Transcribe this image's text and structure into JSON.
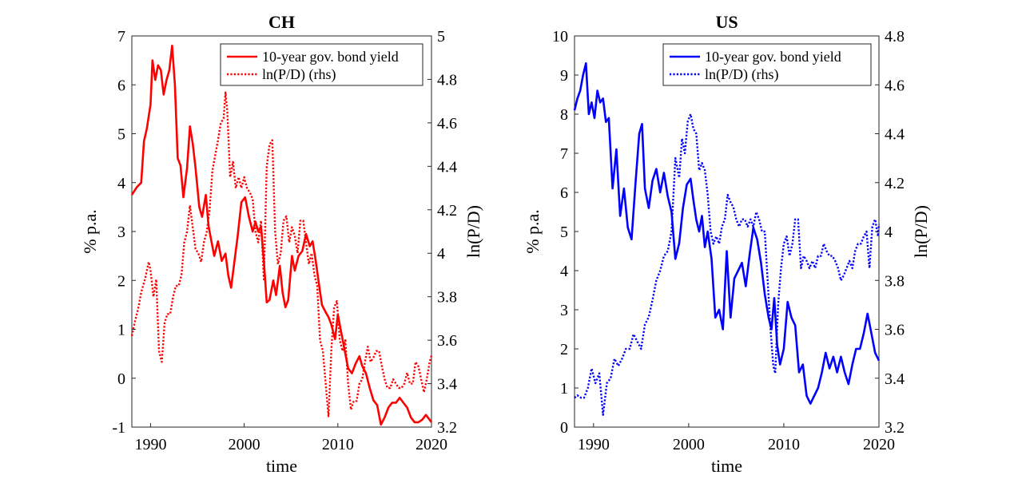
{
  "chart_data": [
    {
      "type": "line",
      "title": "CH",
      "xlabel": "time",
      "ylabel": "% p.a.",
      "y2label": "ln(P/D)",
      "xlim": [
        1988,
        2020
      ],
      "ylim": [
        -1,
        7
      ],
      "y2lim": [
        3.2,
        5
      ],
      "xticks": [
        "1990",
        "2000",
        "2010",
        "2020"
      ],
      "yticks": [
        "-1",
        "0",
        "1",
        "2",
        "3",
        "4",
        "5",
        "6",
        "7"
      ],
      "y2ticks": [
        "3.2",
        "3.4",
        "3.6",
        "3.8",
        "4",
        "4.2",
        "4.4",
        "4.6",
        "4.8",
        "5"
      ],
      "grid": false,
      "legend_position": "top-right",
      "series": [
        {
          "name": "10-year gov. bond yield",
          "axis": "left",
          "style": "solid",
          "color": "#ff0000",
          "x": [
            1988.0,
            1988.5,
            1989.0,
            1989.3,
            1989.6,
            1990.0,
            1990.2,
            1990.5,
            1990.8,
            1991.1,
            1991.4,
            1991.7,
            1992.0,
            1992.3,
            1992.6,
            1992.9,
            1993.2,
            1993.5,
            1993.9,
            1994.2,
            1994.5,
            1994.8,
            1995.2,
            1995.5,
            1995.9,
            1996.2,
            1996.5,
            1996.8,
            1997.2,
            1997.6,
            1998.0,
            1998.3,
            1998.6,
            1998.9,
            1999.3,
            1999.7,
            2000.1,
            2000.5,
            2000.9,
            2001.2,
            2001.5,
            2001.8,
            2002.1,
            2002.4,
            2002.7,
            2003.1,
            2003.4,
            2003.8,
            2004.1,
            2004.4,
            2004.7,
            2005.1,
            2005.4,
            2005.8,
            2006.2,
            2006.6,
            2007.0,
            2007.3,
            2007.6,
            2008.0,
            2008.3,
            2008.7,
            2009.0,
            2009.3,
            2009.7,
            2010.0,
            2010.4,
            2010.8,
            2011.1,
            2011.5,
            2011.9,
            2012.3,
            2012.6,
            2013.0,
            2013.4,
            2013.8,
            2014.2,
            2014.6,
            2015.0,
            2015.4,
            2015.8,
            2016.2,
            2016.6,
            2017.0,
            2017.4,
            2017.8,
            2018.2,
            2018.6,
            2019.0,
            2019.4,
            2019.8,
            2020.0
          ],
          "y": [
            3.75,
            3.9,
            4.0,
            4.85,
            5.1,
            5.6,
            6.5,
            6.1,
            6.4,
            6.3,
            5.8,
            6.1,
            6.3,
            6.8,
            6.0,
            4.5,
            4.35,
            3.7,
            4.3,
            5.15,
            4.8,
            4.3,
            3.5,
            3.3,
            3.75,
            3.1,
            2.8,
            2.5,
            2.8,
            2.4,
            2.55,
            2.1,
            1.85,
            2.3,
            2.9,
            3.6,
            3.7,
            3.3,
            3.0,
            3.2,
            3.0,
            3.1,
            2.4,
            1.55,
            1.6,
            2.0,
            1.7,
            2.3,
            1.75,
            1.45,
            1.6,
            2.5,
            2.2,
            2.5,
            2.6,
            2.95,
            2.7,
            2.8,
            2.45,
            1.9,
            1.5,
            1.35,
            1.25,
            1.1,
            0.8,
            1.3,
            0.9,
            0.5,
            0.2,
            0.1,
            0.3,
            0.45,
            0.25,
            0.1,
            -0.2,
            -0.45,
            -0.55,
            -0.95,
            -0.8,
            -0.6,
            -0.5,
            -0.5,
            -0.4,
            -0.5,
            -0.6,
            -0.8,
            -0.9,
            -0.9,
            -0.85,
            -0.75,
            -0.85,
            -0.9
          ]
        },
        {
          "name": "ln(P/D) (rhs)",
          "axis": "right",
          "style": "dotted",
          "color": "#ff0000",
          "x": [
            1988.0,
            1988.3,
            1988.7,
            1989.0,
            1989.4,
            1989.8,
            1990.0,
            1990.3,
            1990.6,
            1990.9,
            1991.2,
            1991.5,
            1991.8,
            1992.1,
            1992.4,
            1992.7,
            1993.0,
            1993.3,
            1993.6,
            1993.9,
            1994.2,
            1994.5,
            1994.8,
            1995.1,
            1995.4,
            1995.7,
            1996.0,
            1996.3,
            1996.6,
            1996.9,
            1997.2,
            1997.5,
            1997.8,
            1998.0,
            1998.2,
            1998.5,
            1998.8,
            1999.1,
            1999.4,
            1999.7,
            2000.0,
            2000.3,
            2000.6,
            2000.9,
            2001.2,
            2001.5,
            2001.8,
            2002.1,
            2002.4,
            2002.7,
            2003.0,
            2003.3,
            2003.6,
            2003.9,
            2004.2,
            2004.5,
            2004.8,
            2005.1,
            2005.4,
            2005.7,
            2006.0,
            2006.3,
            2006.6,
            2006.9,
            2007.2,
            2007.5,
            2007.8,
            2008.1,
            2008.4,
            2008.7,
            2009.0,
            2009.3,
            2009.6,
            2009.9,
            2010.2,
            2010.5,
            2010.8,
            2011.1,
            2011.4,
            2011.7,
            2012.0,
            2012.3,
            2012.6,
            2012.9,
            2013.2,
            2013.5,
            2013.8,
            2014.1,
            2014.4,
            2014.7,
            2015.0,
            2015.3,
            2015.6,
            2015.9,
            2016.2,
            2016.5,
            2016.8,
            2017.1,
            2017.4,
            2017.7,
            2018.0,
            2018.3,
            2018.6,
            2018.9,
            2019.2,
            2019.5,
            2019.8,
            2020.0
          ],
          "y": [
            3.62,
            3.68,
            3.75,
            3.82,
            3.88,
            3.96,
            3.92,
            3.8,
            3.88,
            3.55,
            3.5,
            3.68,
            3.72,
            3.72,
            3.8,
            3.85,
            3.85,
            3.9,
            4.05,
            4.1,
            4.22,
            4.12,
            4.02,
            4.0,
            3.96,
            4.05,
            4.1,
            4.2,
            4.38,
            4.45,
            4.52,
            4.6,
            4.62,
            4.74,
            4.65,
            4.35,
            4.42,
            4.3,
            4.35,
            4.3,
            4.35,
            4.3,
            4.28,
            4.25,
            4.1,
            4.05,
            4.15,
            3.88,
            4.4,
            4.5,
            4.52,
            4.1,
            3.95,
            4.0,
            4.15,
            4.17,
            4.05,
            4.12,
            4.08,
            4.0,
            4.15,
            4.15,
            4.05,
            3.95,
            4.0,
            3.9,
            3.85,
            3.6,
            3.55,
            3.4,
            3.25,
            3.55,
            3.75,
            3.78,
            3.6,
            3.55,
            3.6,
            3.4,
            3.28,
            3.32,
            3.32,
            3.4,
            3.42,
            3.5,
            3.57,
            3.5,
            3.52,
            3.55,
            3.55,
            3.48,
            3.42,
            3.38,
            3.38,
            3.42,
            3.4,
            3.38,
            3.38,
            3.4,
            3.45,
            3.4,
            3.4,
            3.5,
            3.48,
            3.42,
            3.36,
            3.42,
            3.5,
            3.53
          ]
        }
      ]
    },
    {
      "type": "line",
      "title": "US",
      "xlabel": "time",
      "ylabel": "% p.a.",
      "y2label": "ln(P/D)",
      "xlim": [
        1988,
        2020
      ],
      "ylim": [
        0,
        10
      ],
      "y2lim": [
        3.2,
        4.8
      ],
      "xticks": [
        "1990",
        "2000",
        "2010",
        "2020"
      ],
      "yticks": [
        "0",
        "1",
        "2",
        "3",
        "4",
        "5",
        "6",
        "7",
        "8",
        "9",
        "10"
      ],
      "y2ticks": [
        "3.2",
        "3.4",
        "3.6",
        "3.8",
        "4",
        "4.2",
        "4.4",
        "4.6",
        "4.8"
      ],
      "grid": false,
      "legend_position": "top-right",
      "series": [
        {
          "name": "10-year gov. bond yield",
          "axis": "left",
          "style": "solid",
          "color": "#0000ff",
          "x": [
            1988.0,
            1988.3,
            1988.6,
            1988.9,
            1989.2,
            1989.5,
            1989.8,
            1990.1,
            1990.4,
            1990.7,
            1991.0,
            1991.3,
            1991.6,
            1992.0,
            1992.4,
            1992.8,
            1993.2,
            1993.6,
            1994.0,
            1994.4,
            1994.8,
            1995.1,
            1995.4,
            1995.8,
            1996.2,
            1996.6,
            1997.0,
            1997.4,
            1997.8,
            1998.2,
            1998.6,
            1999.0,
            1999.4,
            1999.8,
            2000.2,
            2000.5,
            2000.8,
            2001.1,
            2001.4,
            2001.7,
            2002.0,
            2002.4,
            2002.8,
            2003.2,
            2003.6,
            2004.0,
            2004.4,
            2004.8,
            2005.2,
            2005.6,
            2006.0,
            2006.4,
            2006.8,
            2007.2,
            2007.6,
            2008.0,
            2008.4,
            2008.7,
            2009.0,
            2009.3,
            2009.6,
            2010.0,
            2010.4,
            2010.8,
            2011.2,
            2011.6,
            2012.0,
            2012.4,
            2012.8,
            2013.2,
            2013.6,
            2014.0,
            2014.4,
            2014.8,
            2015.2,
            2015.6,
            2016.0,
            2016.4,
            2016.8,
            2017.2,
            2017.6,
            2018.0,
            2018.4,
            2018.8,
            2019.2,
            2019.6,
            2020.0
          ],
          "y": [
            8.1,
            8.4,
            8.6,
            9.0,
            9.3,
            8.0,
            8.3,
            7.9,
            8.6,
            8.3,
            8.4,
            7.8,
            7.9,
            6.1,
            7.1,
            5.4,
            6.1,
            5.1,
            4.8,
            6.2,
            7.5,
            7.75,
            6.1,
            5.6,
            6.3,
            6.6,
            6.0,
            6.5,
            5.9,
            5.5,
            4.3,
            4.7,
            5.6,
            6.2,
            6.35,
            5.8,
            5.3,
            5.0,
            5.4,
            4.6,
            5.0,
            4.3,
            2.8,
            3.0,
            2.5,
            4.5,
            2.8,
            3.8,
            4.0,
            4.2,
            3.6,
            4.4,
            5.1,
            4.8,
            4.2,
            3.4,
            2.8,
            2.5,
            3.3,
            2.1,
            1.6,
            2.0,
            3.2,
            2.8,
            2.6,
            1.4,
            1.6,
            0.8,
            0.6,
            0.8,
            1.0,
            1.4,
            1.9,
            1.5,
            1.8,
            1.4,
            1.8,
            1.4,
            1.1,
            1.6,
            2.0,
            2.0,
            2.4,
            2.9,
            2.4,
            1.9,
            1.7
          ]
        },
        {
          "name": "ln(P/D) (rhs)",
          "axis": "right",
          "style": "dotted",
          "color": "#0000ff",
          "x": [
            1988.0,
            1988.3,
            1988.7,
            1989.0,
            1989.4,
            1989.8,
            1990.2,
            1990.6,
            1991.0,
            1991.4,
            1991.8,
            1992.2,
            1992.6,
            1993.0,
            1993.4,
            1993.8,
            1994.2,
            1994.6,
            1995.0,
            1995.4,
            1995.8,
            1996.2,
            1996.6,
            1997.0,
            1997.4,
            1997.8,
            1998.2,
            1998.6,
            1999.0,
            1999.3,
            1999.6,
            1999.9,
            2000.2,
            2000.5,
            2000.8,
            2001.1,
            2001.4,
            2001.7,
            2002.0,
            2002.3,
            2002.6,
            2002.9,
            2003.2,
            2003.5,
            2003.8,
            2004.1,
            2004.4,
            2004.7,
            2005.0,
            2005.3,
            2005.6,
            2005.9,
            2006.2,
            2006.5,
            2006.8,
            2007.1,
            2007.4,
            2007.7,
            2008.0,
            2008.3,
            2008.6,
            2008.9,
            2009.1,
            2009.4,
            2009.7,
            2010.0,
            2010.3,
            2010.6,
            2010.9,
            2011.2,
            2011.5,
            2011.8,
            2012.1,
            2012.4,
            2012.7,
            2013.0,
            2013.3,
            2013.6,
            2013.9,
            2014.2,
            2014.5,
            2014.8,
            2015.1,
            2015.4,
            2015.7,
            2016.0,
            2016.3,
            2016.6,
            2016.9,
            2017.2,
            2017.5,
            2017.8,
            2018.1,
            2018.4,
            2018.7,
            2019.0,
            2019.3,
            2019.6,
            2019.9,
            2020.0
          ],
          "y": [
            3.32,
            3.33,
            3.32,
            3.32,
            3.36,
            3.44,
            3.38,
            3.42,
            3.25,
            3.38,
            3.4,
            3.48,
            3.45,
            3.48,
            3.52,
            3.52,
            3.58,
            3.55,
            3.52,
            3.62,
            3.65,
            3.72,
            3.8,
            3.84,
            3.9,
            3.92,
            4.0,
            4.3,
            4.22,
            4.38,
            4.32,
            4.45,
            4.48,
            4.42,
            4.4,
            4.25,
            4.28,
            4.25,
            4.15,
            4.0,
            3.95,
            3.98,
            3.95,
            4.02,
            4.05,
            4.15,
            4.12,
            4.1,
            4.05,
            4.02,
            4.05,
            4.05,
            4.02,
            4.05,
            4.02,
            4.08,
            4.05,
            4.0,
            4.0,
            3.8,
            3.6,
            3.45,
            3.42,
            3.7,
            3.85,
            3.95,
            3.98,
            3.9,
            3.95,
            4.05,
            4.05,
            3.85,
            3.9,
            3.88,
            3.85,
            3.88,
            3.85,
            3.9,
            3.9,
            3.95,
            3.92,
            3.9,
            3.9,
            3.88,
            3.85,
            3.8,
            3.82,
            3.85,
            3.88,
            3.85,
            3.92,
            3.95,
            3.95,
            3.98,
            4.0,
            3.85,
            4.02,
            4.05,
            3.98,
            4.03
          ]
        }
      ]
    }
  ]
}
